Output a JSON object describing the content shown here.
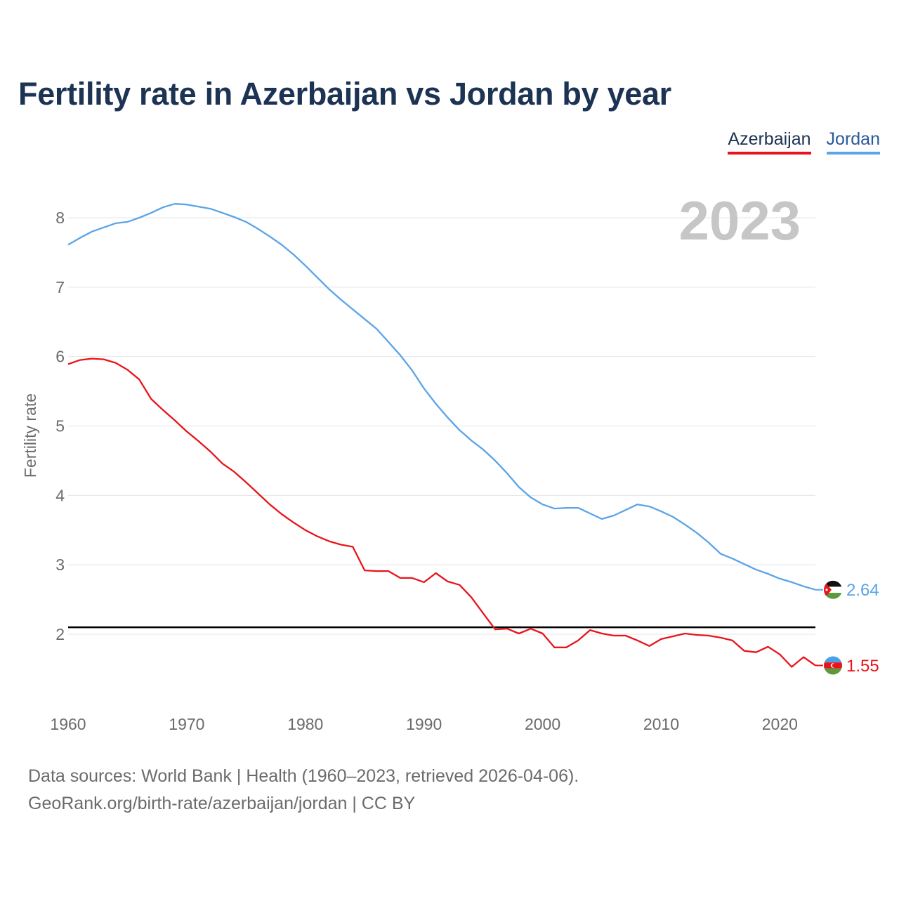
{
  "title": "Fertility rate in Azerbaijan vs Jordan by year",
  "legend": [
    {
      "name": "Azerbaijan",
      "color": "#e8141c"
    },
    {
      "name": "Jordan",
      "color": "#5aa4e8"
    }
  ],
  "year_display": "2023",
  "sources": {
    "line1": "Data sources: World Bank | Health (1960–2023, retrieved 2026-04-06).",
    "line2": "GeoRank.org/birth-rate/azerbaijan/jordan | CC BY"
  },
  "chart_data": {
    "type": "line",
    "title": "Fertility rate in Azerbaijan vs Jordan by year",
    "xlabel": "",
    "ylabel": "Fertility rate",
    "xlim": [
      1960,
      2023
    ],
    "ylim": [
      1.0,
      8.5
    ],
    "x_ticks": [
      1960,
      1970,
      1980,
      1990,
      2000,
      2010,
      2020
    ],
    "y_ticks": [
      2,
      3,
      4,
      5,
      6,
      7,
      8
    ],
    "reference_line": {
      "y": 2.1,
      "color": "#000000"
    },
    "x": [
      1960,
      1961,
      1962,
      1963,
      1964,
      1965,
      1966,
      1967,
      1968,
      1969,
      1970,
      1971,
      1972,
      1973,
      1974,
      1975,
      1976,
      1977,
      1978,
      1979,
      1980,
      1981,
      1982,
      1983,
      1984,
      1985,
      1986,
      1987,
      1988,
      1989,
      1990,
      1991,
      1992,
      1993,
      1994,
      1995,
      1996,
      1997,
      1998,
      1999,
      2000,
      2001,
      2002,
      2003,
      2004,
      2005,
      2006,
      2007,
      2008,
      2009,
      2010,
      2011,
      2012,
      2013,
      2014,
      2015,
      2016,
      2017,
      2018,
      2019,
      2020,
      2021,
      2022,
      2023
    ],
    "series": [
      {
        "name": "Jordan",
        "color": "#5aa4e8",
        "end_label": "2.64",
        "values": [
          7.61,
          7.71,
          7.8,
          7.86,
          7.92,
          7.94,
          8.0,
          8.07,
          8.15,
          8.2,
          8.19,
          8.16,
          8.13,
          8.07,
          8.01,
          7.94,
          7.84,
          7.73,
          7.61,
          7.47,
          7.31,
          7.14,
          6.97,
          6.82,
          6.68,
          6.54,
          6.4,
          6.21,
          6.02,
          5.8,
          5.54,
          5.32,
          5.12,
          4.94,
          4.79,
          4.66,
          4.5,
          4.32,
          4.12,
          3.97,
          3.87,
          3.81,
          3.82,
          3.82,
          3.74,
          3.66,
          3.71,
          3.79,
          3.87,
          3.84,
          3.77,
          3.69,
          3.58,
          3.46,
          3.32,
          3.16,
          3.09,
          3.01,
          2.93,
          2.87,
          2.8,
          2.75,
          2.69,
          2.64
        ]
      },
      {
        "name": "Azerbaijan",
        "color": "#e8141c",
        "end_label": "1.55",
        "values": [
          5.89,
          5.95,
          5.97,
          5.96,
          5.91,
          5.81,
          5.67,
          5.39,
          5.23,
          5.08,
          4.92,
          4.78,
          4.63,
          4.46,
          4.34,
          4.19,
          4.03,
          3.87,
          3.73,
          3.61,
          3.5,
          3.41,
          3.34,
          3.29,
          3.26,
          2.92,
          2.91,
          2.91,
          2.81,
          2.81,
          2.75,
          2.88,
          2.76,
          2.71,
          2.53,
          2.3,
          2.07,
          2.08,
          2.01,
          2.08,
          2.01,
          1.81,
          1.81,
          1.91,
          2.06,
          2.01,
          1.98,
          1.98,
          1.91,
          1.83,
          1.93,
          1.97,
          2.01,
          1.99,
          1.98,
          1.95,
          1.91,
          1.76,
          1.74,
          1.82,
          1.71,
          1.53,
          1.67,
          1.55
        ]
      }
    ]
  }
}
